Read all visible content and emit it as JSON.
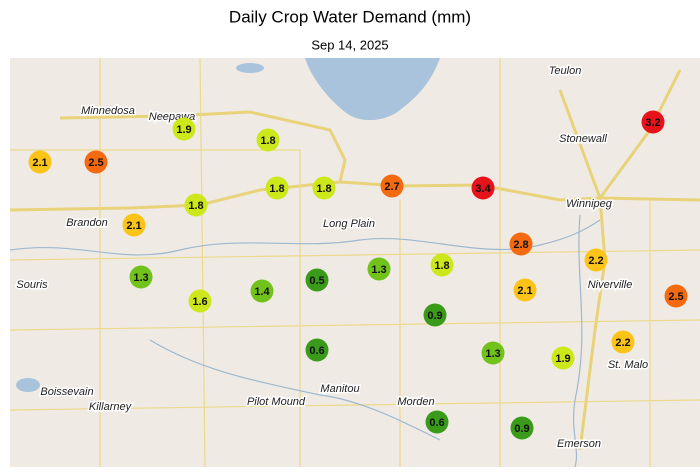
{
  "title": "Daily Crop Water Demand (mm)",
  "subtitle": "Sep 14, 2025",
  "places": [
    "Teulon",
    "Minnedosa",
    "Neepawa",
    "Stonewall",
    "Winnipeg",
    "Brandon",
    "Long Plain",
    "Souris",
    "Niverville",
    "St. Malo",
    "Boissevain",
    "Killarney",
    "Pilot Mound",
    "Manitou",
    "Morden",
    "Emerson"
  ],
  "points": [
    {
      "value": 1.9,
      "color": "#cde81a"
    },
    {
      "value": 2.1,
      "color": "#fcc419"
    },
    {
      "value": 2.5,
      "color": "#f56a10"
    },
    {
      "value": 1.8,
      "color": "#cde81a"
    },
    {
      "value": 1.8,
      "color": "#cde81a"
    },
    {
      "value": 1.8,
      "color": "#cde81a"
    },
    {
      "value": 2.7,
      "color": "#f56a10"
    },
    {
      "value": 3.4,
      "color": "#e8121b"
    },
    {
      "value": 3.2,
      "color": "#e8121b"
    },
    {
      "value": 1.8,
      "color": "#cde81a"
    },
    {
      "value": 2.1,
      "color": "#fcc419"
    },
    {
      "value": 2.8,
      "color": "#f56a10"
    },
    {
      "value": 2.2,
      "color": "#fcc419"
    },
    {
      "value": 1.3,
      "color": "#72c21c"
    },
    {
      "value": 1.6,
      "color": "#cde81a"
    },
    {
      "value": 1.4,
      "color": "#72c21c"
    },
    {
      "value": 0.5,
      "color": "#3a9a1a"
    },
    {
      "value": 1.3,
      "color": "#72c21c"
    },
    {
      "value": 1.8,
      "color": "#cde81a"
    },
    {
      "value": 2.1,
      "color": "#fcc419"
    },
    {
      "value": 2.5,
      "color": "#f56a10"
    },
    {
      "value": 0.9,
      "color": "#3a9a1a"
    },
    {
      "value": 2.2,
      "color": "#fcc419"
    },
    {
      "value": 0.6,
      "color": "#3a9a1a"
    },
    {
      "value": 1.3,
      "color": "#72c21c"
    },
    {
      "value": 1.9,
      "color": "#cde81a"
    },
    {
      "value": 0.6,
      "color": "#3a9a1a"
    },
    {
      "value": 0.9,
      "color": "#3a9a1a"
    }
  ]
}
